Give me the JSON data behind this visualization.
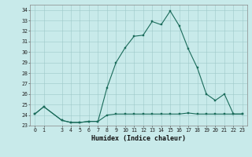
{
  "x": [
    0,
    1,
    3,
    4,
    5,
    6,
    7,
    8,
    9,
    10,
    11,
    12,
    13,
    14,
    15,
    16,
    17,
    18,
    19,
    20,
    21,
    22,
    23
  ],
  "y_upper": [
    24.1,
    24.8,
    23.5,
    23.3,
    23.3,
    23.4,
    23.4,
    26.6,
    29.0,
    30.4,
    31.5,
    31.6,
    32.9,
    32.6,
    33.9,
    32.5,
    30.3,
    28.5,
    26.0,
    25.4,
    26.0,
    24.1,
    24.1
  ],
  "y_lower": [
    24.1,
    24.8,
    23.5,
    23.3,
    23.3,
    23.4,
    23.4,
    24.0,
    24.1,
    24.1,
    24.1,
    24.1,
    24.1,
    24.1,
    24.1,
    24.1,
    24.2,
    24.1,
    24.1,
    24.1,
    24.1,
    24.1,
    24.1
  ],
  "line_color": "#1a6b5a",
  "bg_color": "#c8eaea",
  "grid_color": "#9ec8c8",
  "xlabel": "Humidex (Indice chaleur)",
  "ylim": [
    23,
    34.5
  ],
  "xlim": [
    -0.5,
    23.5
  ],
  "yticks": [
    23,
    24,
    25,
    26,
    27,
    28,
    29,
    30,
    31,
    32,
    33,
    34
  ],
  "xticks": [
    0,
    1,
    3,
    4,
    5,
    6,
    7,
    8,
    9,
    10,
    11,
    12,
    13,
    14,
    15,
    16,
    17,
    18,
    19,
    20,
    21,
    22,
    23
  ],
  "tick_fontsize": 4.8,
  "label_fontsize": 6.0,
  "marker_size": 1.8,
  "line_width": 0.8
}
